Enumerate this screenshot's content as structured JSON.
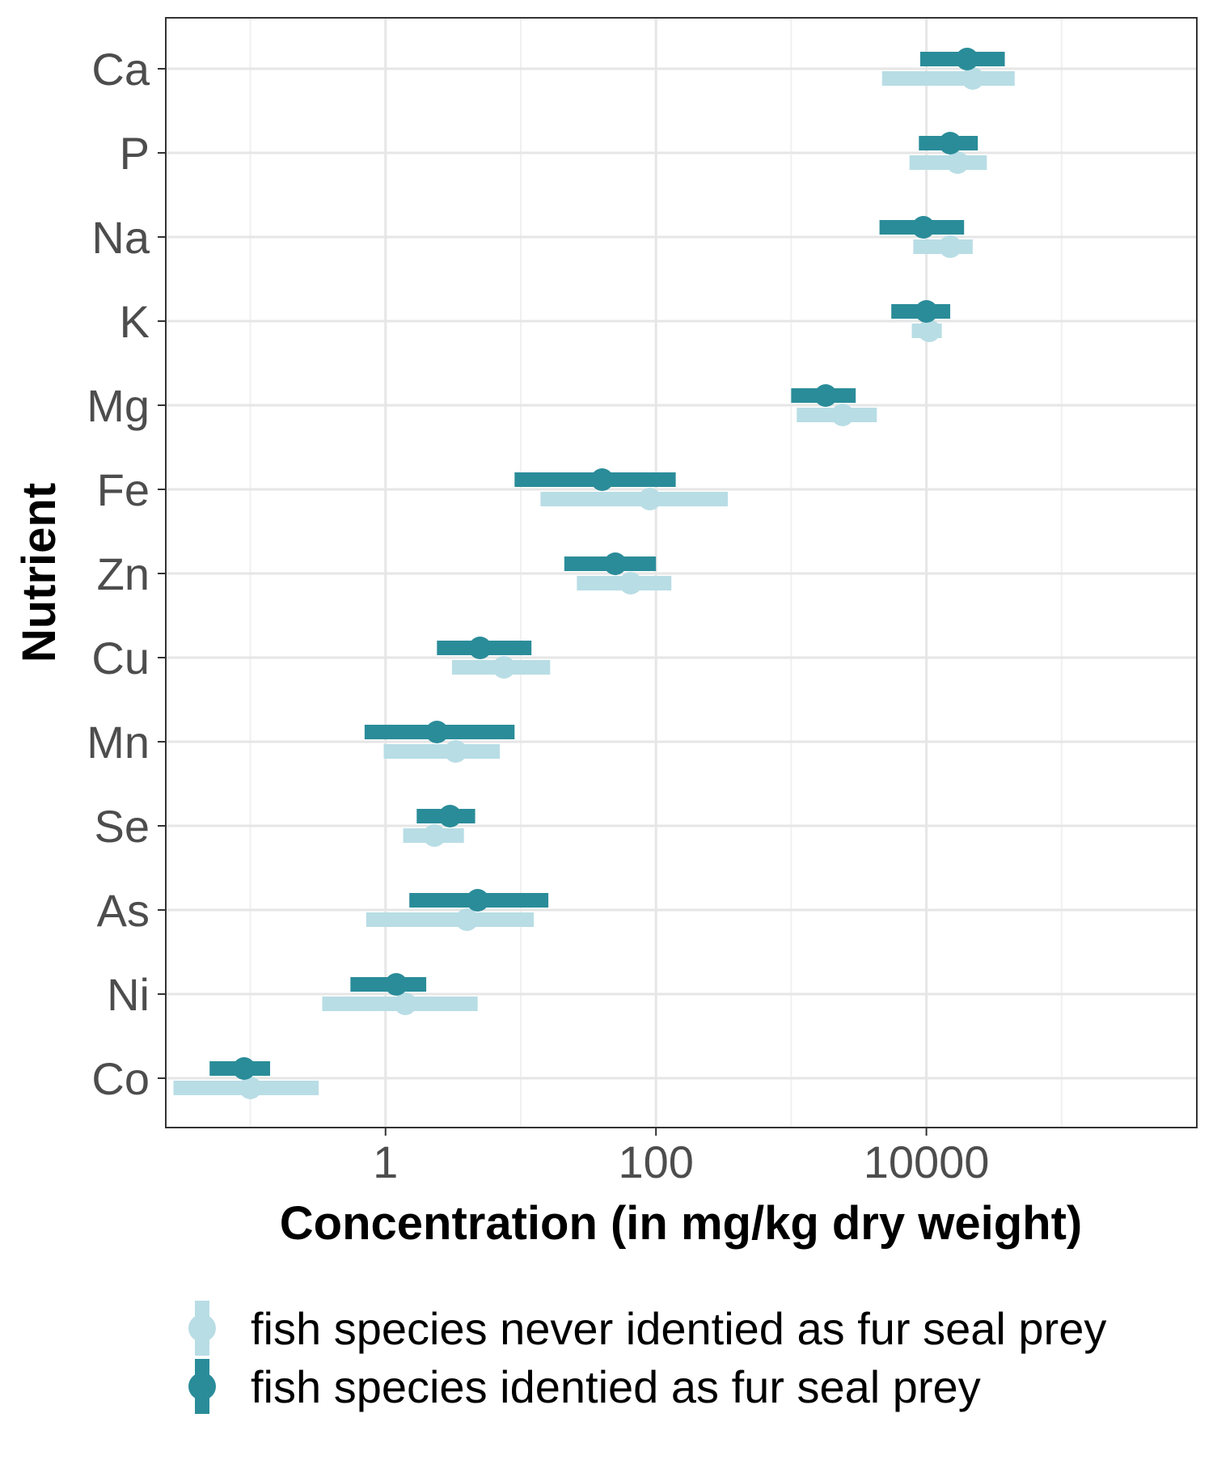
{
  "chart_data": {
    "type": "dot-interval",
    "xlabel": "Concentration (in mg/kg dry weight)",
    "ylabel": "Nutrient",
    "xscale": "log10",
    "xlim": [
      0.0237,
      1000000
    ],
    "xticks": [
      {
        "value": 1,
        "label": "1"
      },
      {
        "value": 100,
        "label": "100"
      },
      {
        "value": 10000,
        "label": "10000"
      }
    ],
    "grid": true,
    "legend_position": "bottom",
    "categories": [
      "Ca",
      "P",
      "Na",
      "K",
      "Mg",
      "Fe",
      "Zn",
      "Cu",
      "Mn",
      "Se",
      "As",
      "Ni",
      "Co"
    ],
    "series": [
      {
        "name": "fish species identied as fur seal prey",
        "color": "#2a8c99",
        "points": [
          {
            "category": "Ca",
            "value": 20000,
            "low": 9000,
            "high": 38000
          },
          {
            "category": "P",
            "value": 15000,
            "low": 8800,
            "high": 24000
          },
          {
            "category": "Na",
            "value": 9500,
            "low": 4500,
            "high": 19000
          },
          {
            "category": "K",
            "value": 10000,
            "low": 5500,
            "high": 15000
          },
          {
            "category": "Mg",
            "value": 1800,
            "low": 1000,
            "high": 3000
          },
          {
            "category": "Fe",
            "value": 40,
            "low": 9,
            "high": 140
          },
          {
            "category": "Zn",
            "value": 50,
            "low": 21,
            "high": 100
          },
          {
            "category": "Cu",
            "value": 5,
            "low": 2.4,
            "high": 12
          },
          {
            "category": "Mn",
            "value": 2.4,
            "low": 0.7,
            "high": 9
          },
          {
            "category": "Se",
            "value": 3,
            "low": 1.7,
            "high": 4.6
          },
          {
            "category": "As",
            "value": 4.8,
            "low": 1.5,
            "high": 16
          },
          {
            "category": "Ni",
            "value": 1.2,
            "low": 0.55,
            "high": 2
          },
          {
            "category": "Co",
            "value": 0.09,
            "low": 0.05,
            "high": 0.14
          }
        ]
      },
      {
        "name": "fish species never identied as fur seal prey",
        "color": "#b8dde5",
        "points": [
          {
            "category": "Ca",
            "value": 22000,
            "low": 4700,
            "high": 45000
          },
          {
            "category": "P",
            "value": 17000,
            "low": 7500,
            "high": 28000
          },
          {
            "category": "Na",
            "value": 15000,
            "low": 8000,
            "high": 22000
          },
          {
            "category": "K",
            "value": 10500,
            "low": 7800,
            "high": 13000
          },
          {
            "category": "Mg",
            "value": 2400,
            "low": 1100,
            "high": 4300
          },
          {
            "category": "Fe",
            "value": 90,
            "low": 14,
            "high": 340
          },
          {
            "category": "Zn",
            "value": 65,
            "low": 26,
            "high": 130
          },
          {
            "category": "Cu",
            "value": 7.5,
            "low": 3.1,
            "high": 16.5
          },
          {
            "category": "Mn",
            "value": 3.3,
            "low": 0.97,
            "high": 7
          },
          {
            "category": "Se",
            "value": 2.3,
            "low": 1.35,
            "high": 3.8
          },
          {
            "category": "As",
            "value": 4,
            "low": 0.72,
            "high": 12.5
          },
          {
            "category": "Ni",
            "value": 1.4,
            "low": 0.34,
            "high": 4.8
          },
          {
            "category": "Co",
            "value": 0.1,
            "low": 0.027,
            "high": 0.32
          }
        ]
      }
    ],
    "legend": [
      {
        "label": "fish species never identied as fur seal prey",
        "color": "#b8dde5"
      },
      {
        "label": "fish species identied as fur seal prey",
        "color": "#2a8c99"
      }
    ]
  }
}
